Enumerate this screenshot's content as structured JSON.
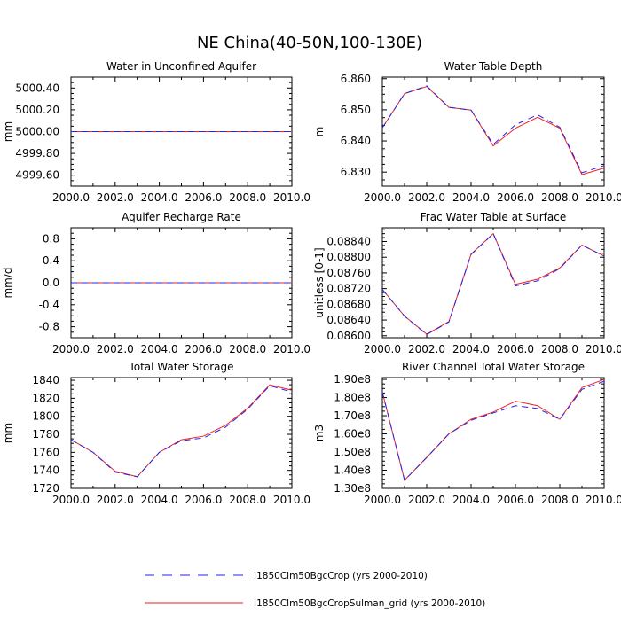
{
  "figure": {
    "title": "NE China(40-50N,100-130E)",
    "line_color_1": "#2222ee",
    "line_color_2": "#ee2222"
  },
  "legend": {
    "items": [
      {
        "label": "I1850Clm50BgcCrop (yrs 2000-2010)",
        "style": "dashed",
        "color": "#2222ee"
      },
      {
        "label": "I1850Clm50BgcCropSulman_grid (yrs 2000-2010)",
        "style": "solid",
        "color": "#ee2222"
      }
    ]
  },
  "chart_data": [
    {
      "type": "line",
      "title": "Water in Unconfined Aquifer",
      "ylabel": "mm",
      "xlabel": "",
      "x": [
        2000,
        2001,
        2002,
        2003,
        2004,
        2005,
        2006,
        2007,
        2008,
        2009,
        2010
      ],
      "xticks": [
        "2000.0",
        "2002.0",
        "2004.0",
        "2006.0",
        "2008.0",
        "2010.0"
      ],
      "yticks": [
        "4999.60",
        "4999.80",
        "5000.00",
        "5000.20",
        "5000.40"
      ],
      "xlim": [
        2000,
        2010
      ],
      "ylim": [
        4999.5,
        5000.5
      ],
      "series": [
        {
          "values": [
            5000,
            5000,
            5000,
            5000,
            5000,
            5000,
            5000,
            5000,
            5000,
            5000,
            5000
          ],
          "color": "#2222ee",
          "dash": true
        },
        {
          "values": [
            5000,
            5000,
            5000,
            5000,
            5000,
            5000,
            5000,
            5000,
            5000,
            5000,
            5000
          ],
          "color": "#ee2222",
          "dash": false
        }
      ]
    },
    {
      "type": "line",
      "title": "Water Table Depth",
      "ylabel": "m",
      "xlabel": "",
      "x": [
        2000,
        2001,
        2002,
        2003,
        2004,
        2005,
        2006,
        2007,
        2008,
        2009,
        2010
      ],
      "xticks": [
        "2000.0",
        "2002.0",
        "2004.0",
        "2006.0",
        "2008.0",
        "2010.0"
      ],
      "yticks": [
        "6.830",
        "6.840",
        "6.850",
        "6.860"
      ],
      "xlim": [
        2000,
        2010
      ],
      "ylim": [
        6.8255,
        6.8605
      ],
      "series": [
        {
          "values": [
            6.8442,
            6.8552,
            6.8577,
            6.8508,
            6.8499,
            6.8389,
            6.8452,
            6.8484,
            6.8444,
            6.8298,
            6.8321
          ],
          "color": "#2222ee",
          "dash": true
        },
        {
          "values": [
            6.8442,
            6.8552,
            6.8575,
            6.8508,
            6.8499,
            6.8384,
            6.8441,
            6.8476,
            6.8441,
            6.8292,
            6.8313
          ],
          "color": "#ee2222",
          "dash": false
        }
      ]
    },
    {
      "type": "line",
      "title": "Aquifer Recharge Rate",
      "ylabel": "mm/d",
      "xlabel": "",
      "x": [
        2000,
        2001,
        2002,
        2003,
        2004,
        2005,
        2006,
        2007,
        2008,
        2009,
        2010
      ],
      "xticks": [
        "2000.0",
        "2002.0",
        "2004.0",
        "2006.0",
        "2008.0",
        "2010.0"
      ],
      "yticks": [
        "-0.8",
        "-0.4",
        "0.0",
        "0.4",
        "0.8"
      ],
      "xlim": [
        2000,
        2010
      ],
      "ylim": [
        -1.0,
        1.0
      ],
      "series": [
        {
          "values": [
            0,
            0,
            0,
            0,
            0,
            0,
            0,
            0,
            0,
            0,
            0
          ],
          "color": "#2222ee",
          "dash": true
        },
        {
          "values": [
            0,
            0,
            0,
            0,
            0,
            0,
            0,
            0,
            0,
            0,
            0
          ],
          "color": "#ee2222",
          "dash": false
        }
      ]
    },
    {
      "type": "line",
      "title": "Frac Water Table at Surface",
      "ylabel": "unitless [0-1]",
      "xlabel": "",
      "x": [
        2000,
        2001,
        2002,
        2003,
        2004,
        2005,
        2006,
        2007,
        2008,
        2009,
        2010
      ],
      "xticks": [
        "2000.0",
        "2002.0",
        "2004.0",
        "2006.0",
        "2008.0",
        "2010.0"
      ],
      "yticks": [
        "0.08600",
        "0.08640",
        "0.08680",
        "0.08720",
        "0.08760",
        "0.08800",
        "0.08840"
      ],
      "xlim": [
        2000,
        2010
      ],
      "ylim": [
        0.08595,
        0.08875
      ],
      "series": [
        {
          "values": [
            0.08718,
            0.0865,
            0.08603,
            0.08635,
            0.08807,
            0.0886,
            0.08727,
            0.0874,
            0.08771,
            0.08831,
            0.08803
          ],
          "color": "#2222ee",
          "dash": true
        },
        {
          "values": [
            0.08718,
            0.0865,
            0.08604,
            0.08636,
            0.08808,
            0.0886,
            0.08731,
            0.08744,
            0.08773,
            0.08831,
            0.08803
          ],
          "color": "#ee2222",
          "dash": false
        }
      ]
    },
    {
      "type": "line",
      "title": "Total Water Storage",
      "ylabel": "mm",
      "xlabel": "",
      "x": [
        2000,
        2001,
        2002,
        2003,
        2004,
        2005,
        2006,
        2007,
        2008,
        2009,
        2010
      ],
      "xticks": [
        "2000.0",
        "2002.0",
        "2004.0",
        "2006.0",
        "2008.0",
        "2010.0"
      ],
      "yticks": [
        "1720",
        "1740",
        "1760",
        "1780",
        "1800",
        "1820",
        "1840"
      ],
      "xlim": [
        2000,
        2010
      ],
      "ylim": [
        1720,
        1843
      ],
      "series": [
        {
          "values": [
            1774,
            1760,
            1738,
            1733,
            1760,
            1773,
            1776,
            1788,
            1808,
            1834,
            1827
          ],
          "color": "#2222ee",
          "dash": true
        },
        {
          "values": [
            1774,
            1760,
            1739,
            1733,
            1760,
            1774,
            1778,
            1790,
            1809,
            1835,
            1829
          ],
          "color": "#ee2222",
          "dash": false
        }
      ]
    },
    {
      "type": "line",
      "title": "River Channel Total Water Storage",
      "ylabel": "m3",
      "xlabel": "",
      "x": [
        2000,
        2001,
        2002,
        2003,
        2004,
        2005,
        2006,
        2007,
        2008,
        2009,
        2010
      ],
      "xticks": [
        "2000.0",
        "2002.0",
        "2004.0",
        "2006.0",
        "2008.0",
        "2010.0"
      ],
      "yticks": [
        "1.30e8",
        "1.40e8",
        "1.50e8",
        "1.60e8",
        "1.70e8",
        "1.80e8",
        "1.90e8"
      ],
      "xlim": [
        2000,
        2010
      ],
      "ylim": [
        130000000,
        191000000
      ],
      "series": [
        {
          "values": [
            183000000,
            134500000,
            147000000,
            160000000,
            167500000,
            171500000,
            175500000,
            174000000,
            168000000,
            184500000,
            189000000
          ],
          "color": "#2222ee",
          "dash": true
        },
        {
          "values": [
            183000000,
            134500000,
            147000000,
            160000000,
            168000000,
            172000000,
            178000000,
            175500000,
            168000000,
            185500000,
            190000000
          ],
          "color": "#ee2222",
          "dash": false
        }
      ]
    }
  ]
}
